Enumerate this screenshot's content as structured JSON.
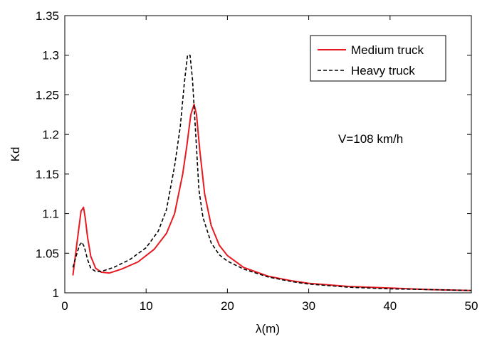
{
  "chart_data": {
    "type": "line",
    "title": "",
    "xlabel": "λ(m)",
    "ylabel": "Kd",
    "xlim": [
      0,
      50
    ],
    "ylim": [
      1,
      1.35
    ],
    "xticks": [
      0,
      10,
      20,
      30,
      40,
      50
    ],
    "yticks": [
      1,
      1.05,
      1.1,
      1.15,
      1.2,
      1.25,
      1.3,
      1.35
    ],
    "xtick_labels": [
      "0",
      "10",
      "20",
      "30",
      "40",
      "50"
    ],
    "ytick_labels": [
      "1",
      "1.05",
      "1.1",
      "1.15",
      "1.2",
      "1.25",
      "1.3",
      "1.35"
    ],
    "grid": false,
    "legend_position": "top-right",
    "annotation": "V=108 km/h",
    "series": [
      {
        "name": "Medium truck",
        "color": "#e8191f",
        "dash": "solid",
        "x": [
          1,
          1.5,
          2,
          2.3,
          2.5,
          2.8,
          3.2,
          3.8,
          4.5,
          5.5,
          7,
          9,
          11,
          12.5,
          13.5,
          14.5,
          15,
          15.5,
          15.9,
          16.2,
          16.6,
          17.2,
          18,
          19,
          20,
          22,
          25,
          28,
          30,
          35,
          40,
          45,
          50
        ],
        "y": [
          1.022,
          1.063,
          1.103,
          1.108,
          1.096,
          1.07,
          1.046,
          1.031,
          1.026,
          1.025,
          1.03,
          1.039,
          1.055,
          1.075,
          1.1,
          1.15,
          1.185,
          1.225,
          1.238,
          1.225,
          1.18,
          1.125,
          1.085,
          1.06,
          1.047,
          1.032,
          1.021,
          1.015,
          1.012,
          1.008,
          1.006,
          1.004,
          1.003
        ]
      },
      {
        "name": "Heavy truck",
        "color": "#000000",
        "dash": "dashed",
        "x": [
          1,
          1.5,
          1.8,
          2.1,
          2.4,
          2.8,
          3.2,
          3.8,
          4.5,
          6,
          8,
          10,
          11.5,
          12.5,
          13.5,
          14.2,
          14.7,
          15.1,
          15.4,
          15.7,
          16.1,
          16.5,
          17,
          18,
          19,
          20,
          22,
          25,
          28,
          30,
          35,
          40,
          45,
          50
        ],
        "y": [
          1.032,
          1.05,
          1.06,
          1.064,
          1.058,
          1.042,
          1.031,
          1.027,
          1.027,
          1.032,
          1.042,
          1.057,
          1.078,
          1.105,
          1.16,
          1.21,
          1.265,
          1.3,
          1.3,
          1.27,
          1.2,
          1.13,
          1.095,
          1.063,
          1.048,
          1.04,
          1.03,
          1.02,
          1.014,
          1.011,
          1.007,
          1.005,
          1.004,
          1.003
        ]
      }
    ]
  }
}
